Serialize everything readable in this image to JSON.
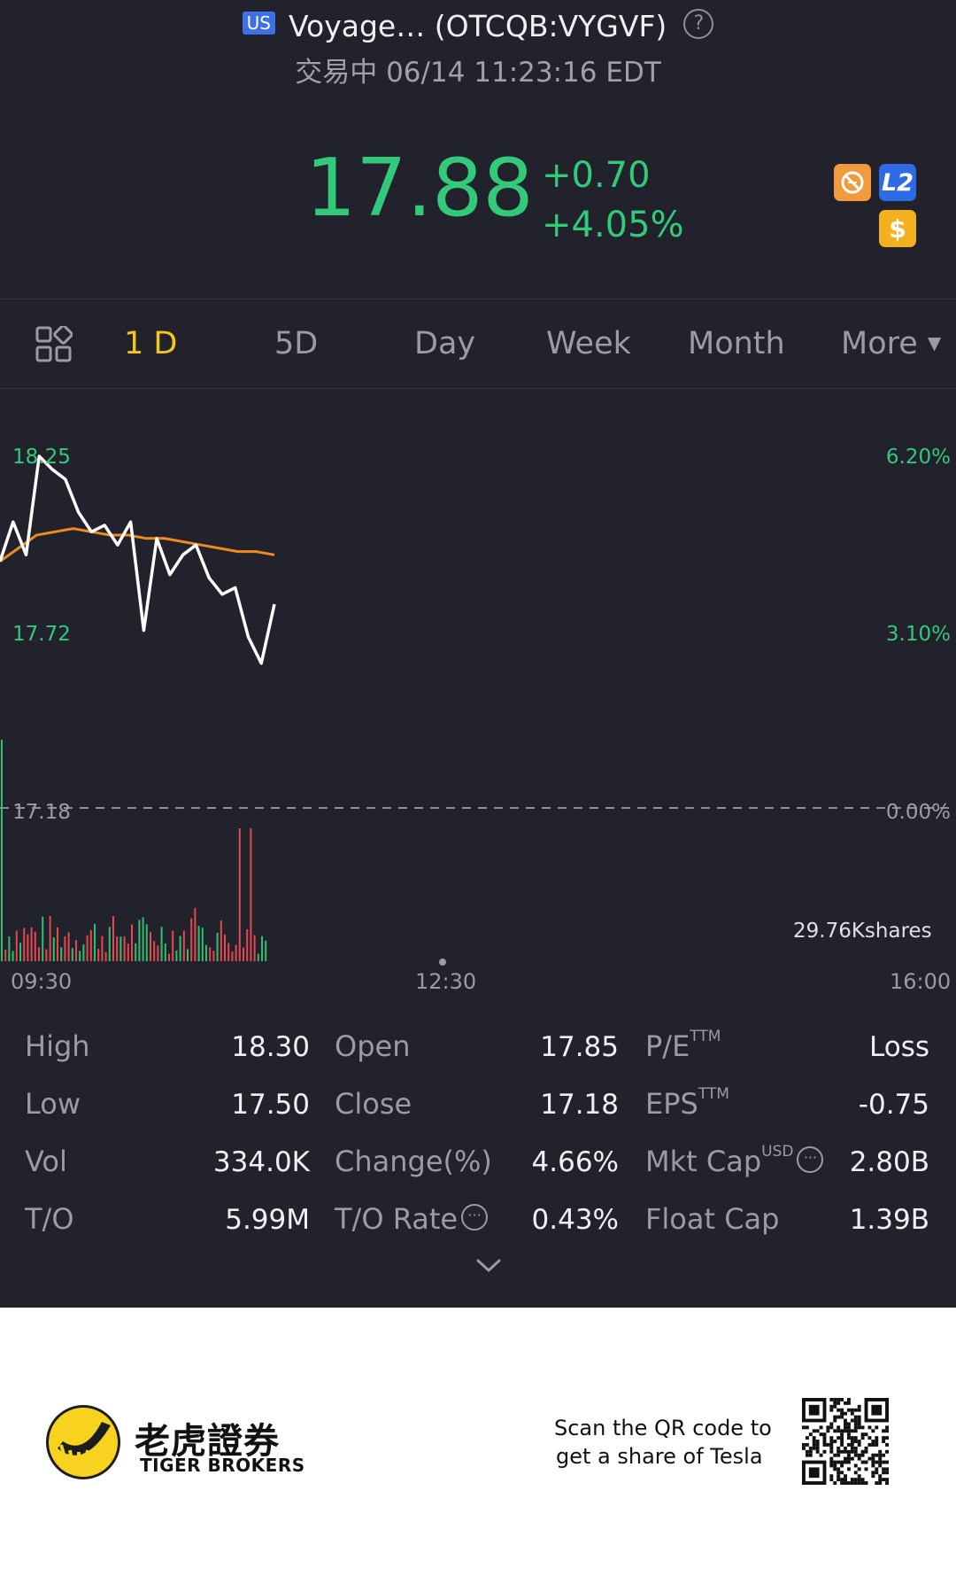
{
  "header": {
    "market_badge": "US",
    "title": "Voyage… (OTCQB:VYGVF)",
    "status": "交易中 06/14 11:23:16 EDT",
    "price": "17.88",
    "change": "+0.70",
    "change_pct": "+4.05%",
    "badges": [
      "halt-icon",
      "L2",
      "$"
    ]
  },
  "tabs": {
    "items": [
      {
        "label": "1 D",
        "active": true
      },
      {
        "label": "5D"
      },
      {
        "label": "Day"
      },
      {
        "label": "Week"
      },
      {
        "label": "Month"
      },
      {
        "label": "More"
      }
    ]
  },
  "chart": {
    "y_left": [
      "18.25",
      "17.72",
      "17.18"
    ],
    "y_right": [
      "6.20%",
      "3.10%",
      "0.00%"
    ],
    "x": [
      "09:30",
      "12:30",
      "16:00"
    ],
    "volume_label": "29.76Kshares",
    "colors": {
      "price": "#ffffff",
      "avg": "#f08a1c",
      "up": "#2fbf71",
      "down": "#e5484d",
      "axis": "#32c97a"
    }
  },
  "chart_data": {
    "type": "line",
    "y_ticks_price": [
      17.18,
      17.72,
      18.25
    ],
    "y_ticks_pct": [
      "0.00%",
      "3.10%",
      "6.20%"
    ],
    "x_ticks": [
      "09:30",
      "12:30",
      "16:00"
    ],
    "price_range": [
      17.18,
      18.25
    ],
    "series": [
      {
        "values": [
          17.93,
          18.05,
          17.95,
          18.25,
          18.21,
          18.18,
          18.08,
          18.02,
          18.04,
          17.98,
          18.05,
          17.72,
          18.0,
          17.89,
          17.95,
          17.98,
          17.88,
          17.83,
          17.85,
          17.7,
          17.62,
          17.8
        ]
      },
      {
        "values": [
          17.93,
          17.97,
          18.01,
          18.02,
          18.03,
          18.02,
          18.01,
          18.01,
          18.0,
          18.0,
          17.99,
          17.98,
          17.97,
          17.96,
          17.96,
          17.95
        ]
      }
    ],
    "volume_max_label": "29.76Kshares"
  },
  "stats": {
    "rows": [
      [
        {
          "label": "High",
          "value": "18.30"
        },
        {
          "label": "Open",
          "value": "17.85"
        },
        {
          "label": "P/E",
          "sup": "TTM",
          "value": "Loss"
        }
      ],
      [
        {
          "label": "Low",
          "value": "17.50"
        },
        {
          "label": "Close",
          "value": "17.18"
        },
        {
          "label": "EPS",
          "sup": "TTM",
          "value": "-0.75"
        }
      ],
      [
        {
          "label": "Vol",
          "value": "334.0K"
        },
        {
          "label": "Change(%)",
          "value": "4.66%"
        },
        {
          "label": "Mkt Cap",
          "sup": "USD",
          "value": "2.80B"
        }
      ],
      [
        {
          "label": "T/O",
          "value": "5.99M"
        },
        {
          "label": "T/O Rate",
          "value": "0.43%"
        },
        {
          "label": "Float Cap",
          "value": "1.39B"
        }
      ]
    ]
  },
  "footer": {
    "brand_cn": "老虎證券",
    "brand_en": "TIGER BROKERS",
    "qr_line1": "Scan the QR code to",
    "qr_line2": "get a share of Tesla"
  }
}
